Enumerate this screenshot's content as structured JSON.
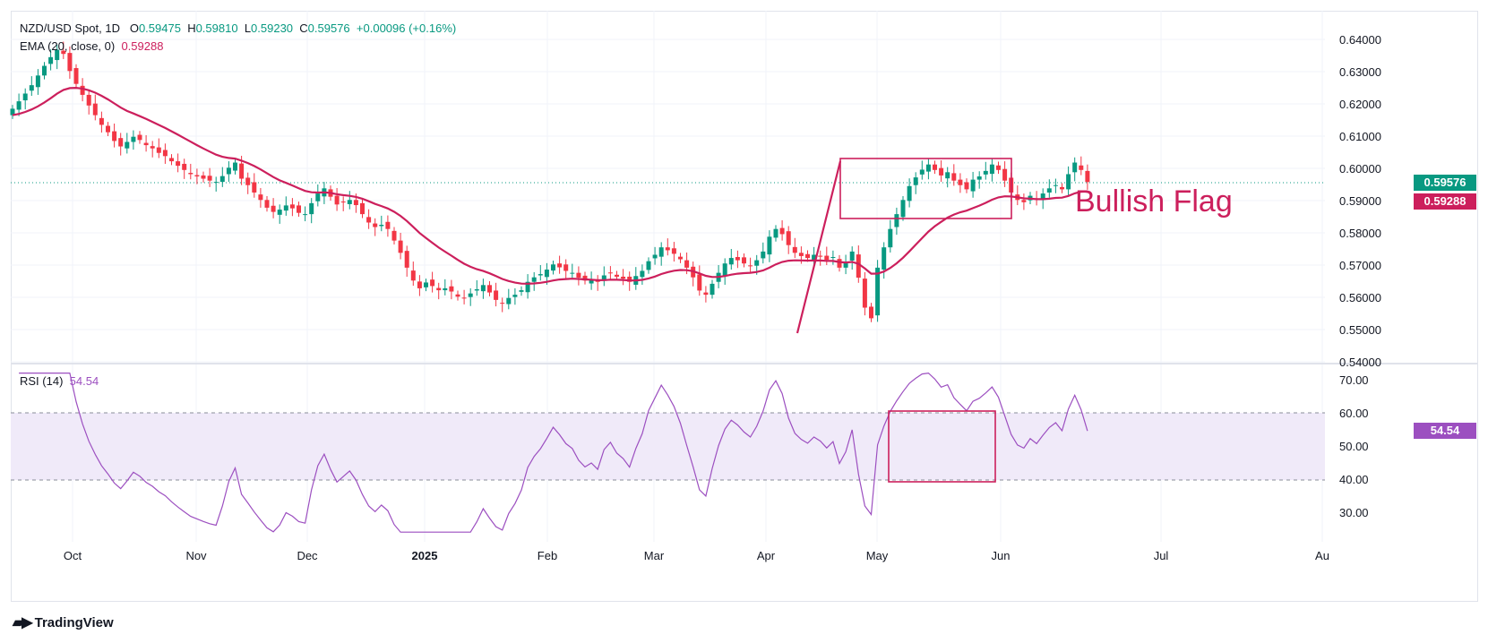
{
  "header": {
    "symbol": "NZD/USD Spot, 1D",
    "o_label": "O",
    "o_value": "0.59475",
    "h_label": "H",
    "h_value": "0.59810",
    "l_label": "L",
    "l_value": "0.59230",
    "c_label": "C",
    "c_value": "0.59576",
    "change": "+0.00096 (+0.16%)"
  },
  "ema_legend": {
    "label": "EMA (20, close, 0)",
    "value": "0.59288"
  },
  "rsi_legend": {
    "label": "RSI (14)",
    "value": "54.54"
  },
  "price_tags": {
    "last": "0.59576",
    "ema": "0.59288",
    "rsi": "54.54"
  },
  "annotation": "Bullish Flag",
  "colors": {
    "up": "#089981",
    "down": "#f23645",
    "ema": "#cc1f5c",
    "rsi": "#9c4fc0",
    "annotation": "#cc1f5c",
    "rsi_band": "#f0eaf9"
  },
  "logo": "TradingView",
  "chart_data": [
    {
      "type": "candlestick",
      "title": "NZD/USD Spot, 1D",
      "y_ticks": [
        "0.64000",
        "0.63000",
        "0.62000",
        "0.61000",
        "0.60000",
        "0.59000",
        "0.58000",
        "0.57000",
        "0.56000",
        "0.55000",
        "0.54000"
      ],
      "ylim": [
        0.54,
        0.645
      ],
      "x_ticks": [
        "Oct",
        "Nov",
        "Dec",
        "2025",
        "Feb",
        "Mar",
        "Apr",
        "May",
        "Jun",
        "Jul",
        "Au"
      ],
      "last_close": 0.59576,
      "ema_last": 0.59288,
      "closes": [
        0.6185,
        0.6208,
        0.6232,
        0.6258,
        0.6288,
        0.6318,
        0.6345,
        0.6368,
        0.6355,
        0.6302,
        0.6262,
        0.6228,
        0.6195,
        0.6165,
        0.6135,
        0.6112,
        0.6085,
        0.6068,
        0.6082,
        0.6098,
        0.6088,
        0.6072,
        0.6062,
        0.6048,
        0.6038,
        0.6022,
        0.6008,
        0.5995,
        0.5982,
        0.5975,
        0.5968,
        0.5962,
        0.5958,
        0.5976,
        0.6002,
        0.6018,
        0.5968,
        0.5948,
        0.5925,
        0.5902,
        0.5878,
        0.5865,
        0.5872,
        0.5885,
        0.5876,
        0.5862,
        0.5858,
        0.5892,
        0.5922,
        0.5938,
        0.5912,
        0.5888,
        0.5895,
        0.5902,
        0.5886,
        0.5858,
        0.5832,
        0.5818,
        0.5825,
        0.5812,
        0.5776,
        0.5738,
        0.5692,
        0.5652,
        0.5628,
        0.5646,
        0.5635,
        0.5622,
        0.5628,
        0.5618,
        0.5602,
        0.5598,
        0.5612,
        0.5625,
        0.5638,
        0.5615,
        0.5592,
        0.5582,
        0.5598,
        0.5608,
        0.5622,
        0.5648,
        0.5662,
        0.5672,
        0.5686,
        0.5702,
        0.5693,
        0.5682,
        0.5676,
        0.5661,
        0.5652,
        0.5656,
        0.5648,
        0.5668,
        0.5676,
        0.5664,
        0.5658,
        0.5648,
        0.5666,
        0.5682,
        0.5712,
        0.5732,
        0.5755,
        0.5746,
        0.5735,
        0.5718,
        0.5692,
        0.5662,
        0.5621,
        0.5608,
        0.5642,
        0.5676,
        0.5705,
        0.5722,
        0.5715,
        0.5705,
        0.5698,
        0.5715,
        0.5742,
        0.5788,
        0.5812,
        0.5796,
        0.5762,
        0.5738,
        0.5728,
        0.5722,
        0.5732,
        0.5726,
        0.5716,
        0.5725,
        0.5692,
        0.5708,
        0.5742,
        0.5661,
        0.5568,
        0.5535,
        0.5692,
        0.5755,
        0.5812,
        0.5858,
        0.5902,
        0.5945,
        0.5972,
        0.5996,
        0.6012,
        0.5995,
        0.5978,
        0.5988,
        0.5962,
        0.5948,
        0.5935,
        0.5965,
        0.5975,
        0.5992,
        0.6012,
        0.5995,
        0.5962,
        0.5925,
        0.5902,
        0.5895,
        0.5915,
        0.5905,
        0.5922,
        0.5938,
        0.5948,
        0.5935,
        0.5982,
        0.6018,
        0.5995,
        0.59576
      ],
      "rsi_ylim": [
        20,
        75
      ],
      "rsi_ticks": [
        "70.00",
        "60.00",
        "50.00",
        "40.00",
        "30.00"
      ],
      "rsi_levels": [
        60,
        40
      ],
      "rsi_last": 54.54
    }
  ]
}
